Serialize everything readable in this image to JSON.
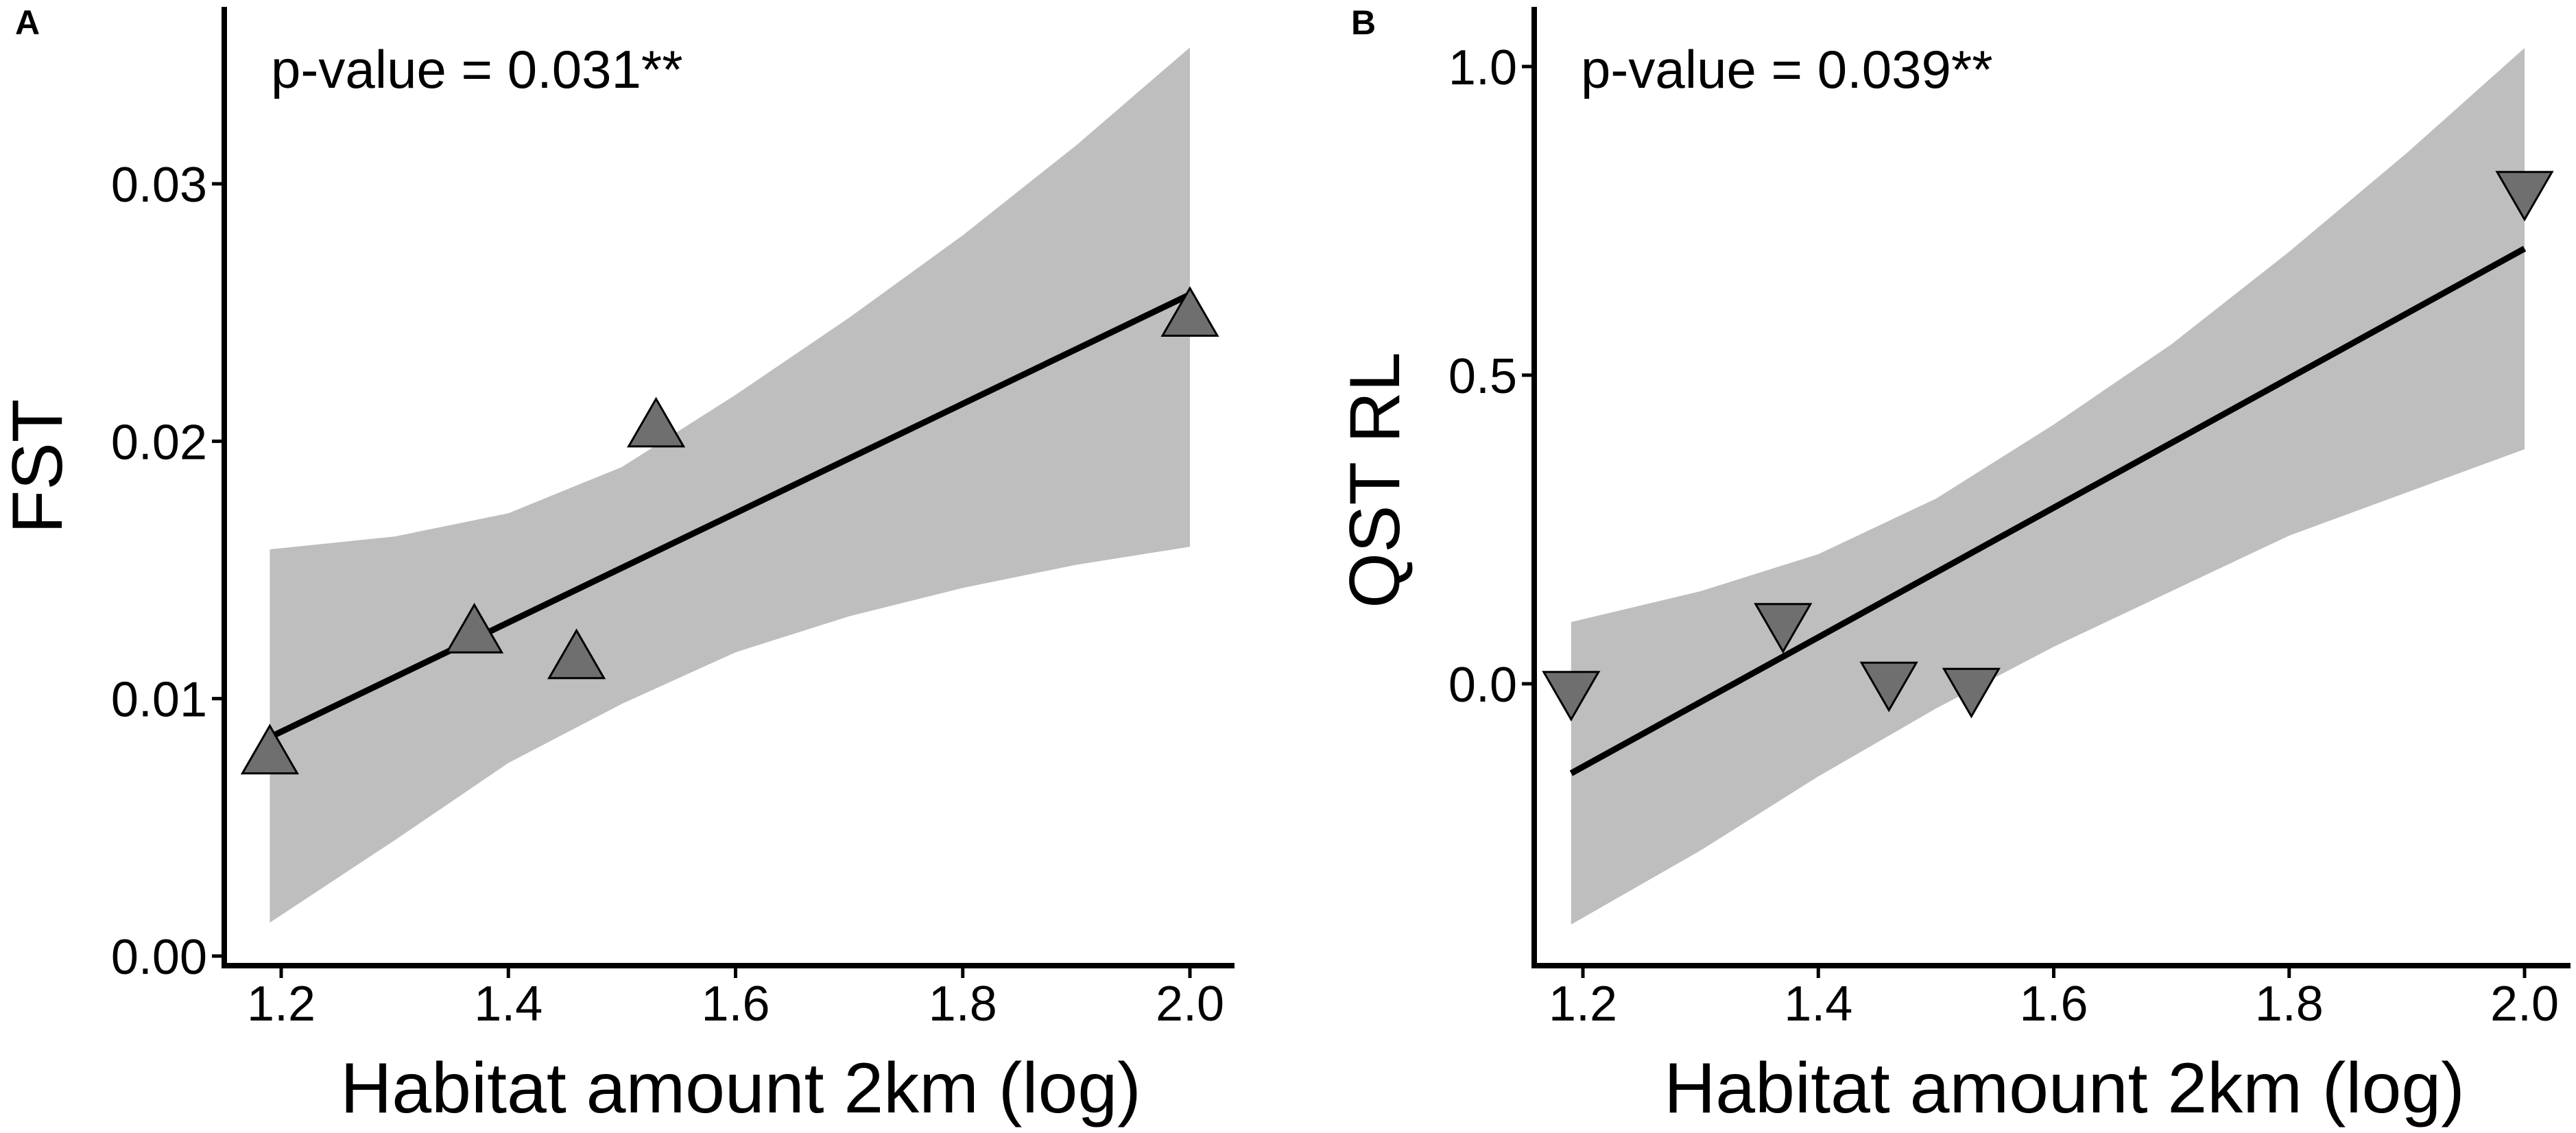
{
  "colors": {
    "band": "#bebebe",
    "line": "#000000",
    "marker": "#6f6f6f",
    "marker_stroke": "#000000",
    "axis": "#000000"
  },
  "chart_data": [
    {
      "panel_label": "A",
      "type": "scatter",
      "marker": "triangle-up",
      "annotation": "p-value = 0.031**",
      "xlabel": "Habitat amount 2km (log)",
      "ylabel": "FST",
      "xlim": [
        1.15,
        2.05
      ],
      "ylim": [
        0.0,
        0.036
      ],
      "xticks": [
        1.2,
        1.4,
        1.6,
        1.8,
        2.0
      ],
      "xtick_labels": [
        "1.2",
        "1.4",
        "1.6",
        "1.8",
        "2.0"
      ],
      "yticks": [
        0.0,
        0.01,
        0.02,
        0.03
      ],
      "ytick_labels": [
        "0.00",
        "0.01",
        "0.02",
        "0.03"
      ],
      "points": [
        {
          "x": 1.19,
          "y": 0.0078
        },
        {
          "x": 1.37,
          "y": 0.0125
        },
        {
          "x": 1.46,
          "y": 0.0115
        },
        {
          "x": 1.53,
          "y": 0.0205
        },
        {
          "x": 2.0,
          "y": 0.0248
        }
      ],
      "fit_line": {
        "x": [
          1.19,
          2.0
        ],
        "y": [
          0.0085,
          0.0257
        ]
      },
      "ci_band": {
        "x": [
          1.19,
          1.3,
          1.4,
          1.5,
          1.6,
          1.7,
          1.8,
          1.9,
          2.0
        ],
        "upper": [
          0.0158,
          0.0163,
          0.0172,
          0.019,
          0.0218,
          0.0248,
          0.028,
          0.0315,
          0.0353
        ],
        "lower": [
          0.0013,
          0.0045,
          0.0075,
          0.0098,
          0.0118,
          0.0132,
          0.0143,
          0.0152,
          0.0159
        ]
      }
    },
    {
      "panel_label": "B",
      "type": "scatter",
      "marker": "triangle-down",
      "annotation": "p-value = 0.039**",
      "xlabel": "Habitat amount 2km (log)",
      "ylabel": "QST RL",
      "xlim": [
        1.15,
        2.05
      ],
      "ylim": [
        -0.47,
        1.1
      ],
      "xticks": [
        1.2,
        1.4,
        1.6,
        1.8,
        2.0
      ],
      "xtick_labels": [
        "1.2",
        "1.4",
        "1.6",
        "1.8",
        "2.0"
      ],
      "yticks": [
        0.0,
        0.5,
        1.0
      ],
      "ytick_labels": [
        "0.0",
        "0.5",
        "1.0"
      ],
      "points": [
        {
          "x": 1.19,
          "y": -0.01
        },
        {
          "x": 1.37,
          "y": 0.1
        },
        {
          "x": 1.46,
          "y": 0.005
        },
        {
          "x": 1.53,
          "y": -0.005
        },
        {
          "x": 2.0,
          "y": 0.8
        }
      ],
      "fit_line": {
        "x": [
          1.19,
          2.0
        ],
        "y": [
          -0.145,
          0.705
        ]
      },
      "ci_band": {
        "x": [
          1.19,
          1.3,
          1.4,
          1.5,
          1.6,
          1.7,
          1.8,
          1.9,
          2.0
        ],
        "upper": [
          0.1,
          0.15,
          0.21,
          0.3,
          0.42,
          0.55,
          0.7,
          0.86,
          1.03
        ],
        "lower": [
          -0.39,
          -0.27,
          -0.15,
          -0.04,
          0.06,
          0.15,
          0.24,
          0.31,
          0.38
        ]
      }
    }
  ]
}
